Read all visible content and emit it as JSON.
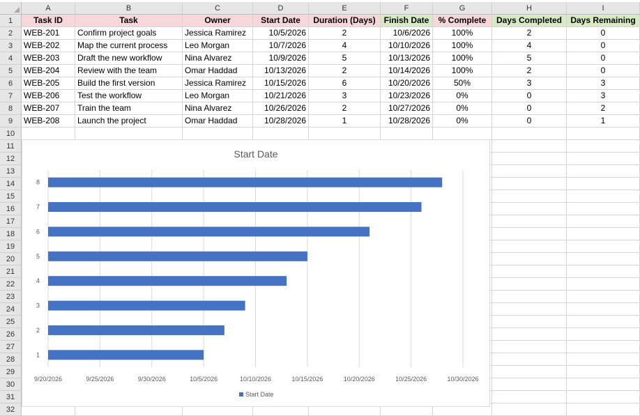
{
  "columns": [
    "A",
    "B",
    "C",
    "D",
    "E",
    "F",
    "G",
    "H",
    "I"
  ],
  "rows": [
    "1",
    "2",
    "3",
    "4",
    "5",
    "6",
    "7",
    "8",
    "9",
    "10",
    "11",
    "12",
    "13",
    "14",
    "15",
    "16",
    "17",
    "18",
    "19",
    "20",
    "21",
    "22",
    "23",
    "24",
    "25",
    "26",
    "27",
    "28",
    "29",
    "30",
    "31",
    "32"
  ],
  "headers": [
    "Task ID",
    "Task",
    "Owner",
    "Start Date",
    "Duration (Days)",
    "Finish Date",
    "% Complete",
    "Days Completed",
    "Days Remaining"
  ],
  "table": [
    [
      "WEB-201",
      "Confirm project goals",
      "Jessica Ramirez",
      "10/5/2026",
      "2",
      "10/6/2026",
      "100%",
      "2",
      "0"
    ],
    [
      "WEB-202",
      "Map the current process",
      "Leo Morgan",
      "10/7/2026",
      "4",
      "10/10/2026",
      "100%",
      "4",
      "0"
    ],
    [
      "WEB-203",
      "Draft the new workflow",
      "Nina Alvarez",
      "10/9/2026",
      "5",
      "10/13/2026",
      "100%",
      "5",
      "0"
    ],
    [
      "WEB-204",
      "Review with the team",
      "Omar Haddad",
      "10/13/2026",
      "2",
      "10/14/2026",
      "100%",
      "2",
      "0"
    ],
    [
      "WEB-205",
      "Build the first version",
      "Jessica Ramirez",
      "10/15/2026",
      "6",
      "10/20/2026",
      "50%",
      "3",
      "3"
    ],
    [
      "WEB-206",
      "Test the workflow",
      "Leo Morgan",
      "10/21/2026",
      "3",
      "10/23/2026",
      "0%",
      "0",
      "3"
    ],
    [
      "WEB-207",
      "Train the team",
      "Nina Alvarez",
      "10/26/2026",
      "2",
      "10/27/2026",
      "0%",
      "0",
      "2"
    ],
    [
      "WEB-208",
      "Launch the project",
      "Omar Haddad",
      "10/28/2026",
      "1",
      "10/28/2026",
      "0%",
      "0",
      "1"
    ]
  ],
  "colors": {
    "header_pink": "#f8d7da",
    "header_green": "#d6ebc1",
    "bar": "#4472c4"
  },
  "chart_data": {
    "type": "bar",
    "orientation": "horizontal",
    "title": "Start Date",
    "categories": [
      "1",
      "2",
      "3",
      "4",
      "5",
      "6",
      "7",
      "8"
    ],
    "series": [
      {
        "name": "Start Date",
        "values": [
          "2026-10-05",
          "2026-10-07",
          "2026-10-09",
          "2026-10-13",
          "2026-10-15",
          "2026-10-21",
          "2026-10-26",
          "2026-10-28"
        ]
      }
    ],
    "x_ticks": [
      "9/20/2026",
      "9/25/2026",
      "9/30/2026",
      "10/5/2026",
      "10/10/2026",
      "10/15/2026",
      "10/20/2026",
      "10/25/2026",
      "10/30/2026"
    ],
    "xlim": [
      "2026-09-20",
      "2026-10-30"
    ],
    "grid": true,
    "legend": "bottom"
  }
}
